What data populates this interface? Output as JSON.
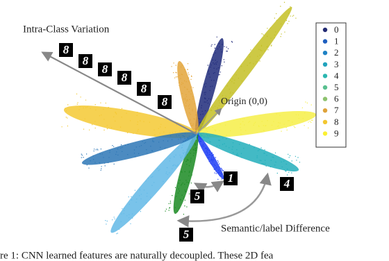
{
  "annotations": {
    "intra_class": "Intra-Class Variation",
    "origin": "Origin (0,0)",
    "semantic": "Semantic/label Difference"
  },
  "legend": {
    "items": [
      {
        "label": "0",
        "color": "#232b73"
      },
      {
        "label": "1",
        "color": "#1e5fbf"
      },
      {
        "label": "2",
        "color": "#1f82c4"
      },
      {
        "label": "3",
        "color": "#21a3bd"
      },
      {
        "label": "4",
        "color": "#2bb7b0"
      },
      {
        "label": "5",
        "color": "#59c08f"
      },
      {
        "label": "6",
        "color": "#8cc26e"
      },
      {
        "label": "7",
        "color": "#dea33a"
      },
      {
        "label": "8",
        "color": "#f3c72f"
      },
      {
        "label": "9",
        "color": "#fbf032"
      }
    ]
  },
  "digit_images": [
    "8",
    "8",
    "8",
    "8",
    "8",
    "8",
    "1",
    "5",
    "4",
    "5"
  ],
  "caption": "re 1: CNN learned features are naturally decoupled. These 2D fea"
}
